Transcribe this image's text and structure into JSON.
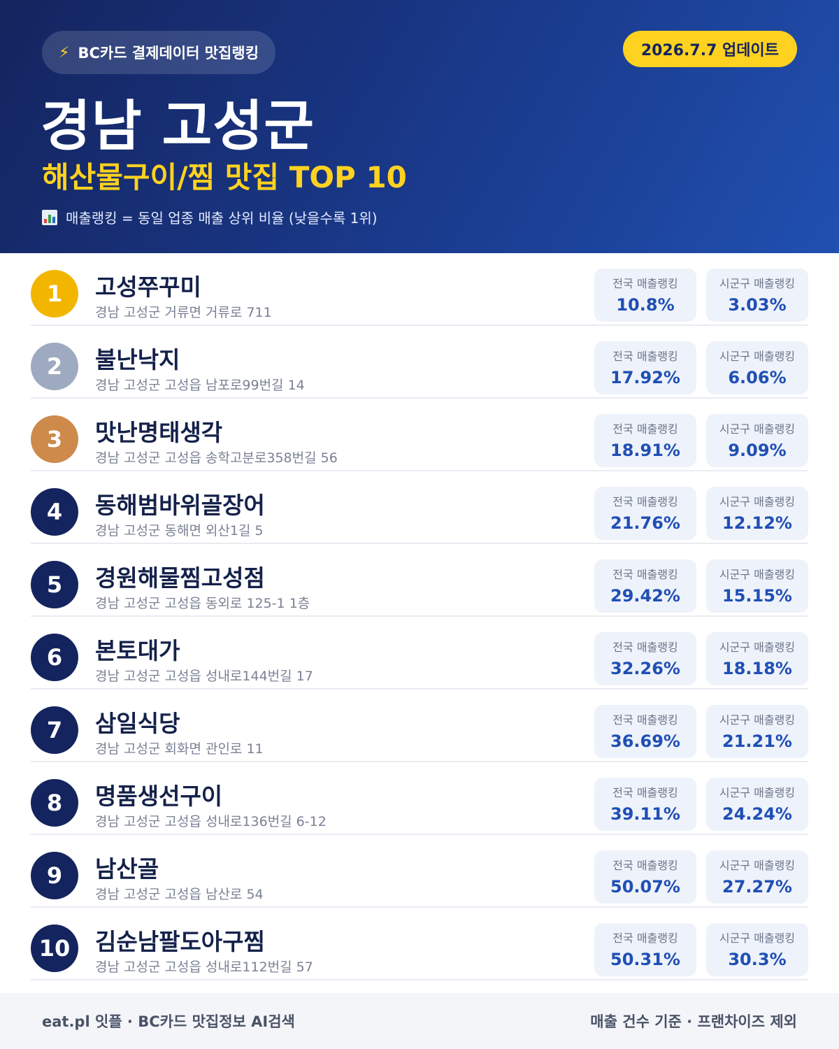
{
  "header": {
    "badge_icon": "lightning-icon",
    "badge_label": "BC카드 결제데이터 맛집랭킹",
    "update_label": "2026.7.7 업데이트",
    "region": "경남 고성군",
    "subtitle": "해산물구이/찜 맛집 TOP 10",
    "legend_icon": "bar-chart-icon",
    "legend_text": "매출랭킹 = 동일 업종 매출 상위 비율 (낮을수록 1위)"
  },
  "colors": {
    "accent_yellow": "#ffd21f",
    "navy": "#14245e",
    "gold": "#f2b600",
    "silver": "#9eaac0",
    "bronze": "#cd8a4a",
    "value_blue": "#1f4fb5"
  },
  "stat_labels": {
    "national": "전국 매출랭킹",
    "local": "시군구 매출랭킹"
  },
  "restaurants": [
    {
      "rank": "1",
      "name": "고성쭈꾸미",
      "address": "경남 고성군 거류면 거류로 711",
      "national": "10.8%",
      "local": "3.03%"
    },
    {
      "rank": "2",
      "name": "불난낙지",
      "address": "경남 고성군 고성읍 남포로99번길 14",
      "national": "17.92%",
      "local": "6.06%"
    },
    {
      "rank": "3",
      "name": "맛난명태생각",
      "address": "경남 고성군 고성읍 송학고분로358번길 56",
      "national": "18.91%",
      "local": "9.09%"
    },
    {
      "rank": "4",
      "name": "동해범바위골장어",
      "address": "경남 고성군 동해면 외산1길 5",
      "national": "21.76%",
      "local": "12.12%"
    },
    {
      "rank": "5",
      "name": "경원해물찜고성점",
      "address": "경남 고성군 고성읍 동외로 125-1 1층",
      "national": "29.42%",
      "local": "15.15%"
    },
    {
      "rank": "6",
      "name": "본토대가",
      "address": "경남 고성군 고성읍 성내로144번길 17",
      "national": "32.26%",
      "local": "18.18%"
    },
    {
      "rank": "7",
      "name": "삼일식당",
      "address": "경남 고성군 회화면 관인로 11",
      "national": "36.69%",
      "local": "21.21%"
    },
    {
      "rank": "8",
      "name": "명품생선구이",
      "address": "경남 고성군 고성읍 성내로136번길 6-12",
      "national": "39.11%",
      "local": "24.24%"
    },
    {
      "rank": "9",
      "name": "남산골",
      "address": "경남 고성군 고성읍 남산로 54",
      "national": "50.07%",
      "local": "27.27%"
    },
    {
      "rank": "10",
      "name": "김순남팔도아구찜",
      "address": "경남 고성군 고성읍 성내로112번길 57",
      "national": "50.31%",
      "local": "30.3%"
    }
  ],
  "footer": {
    "left": "eat.pl 잇플 · BC카드 맛집정보 AI검색",
    "right": "매출 건수 기준 · 프랜차이즈 제외"
  }
}
